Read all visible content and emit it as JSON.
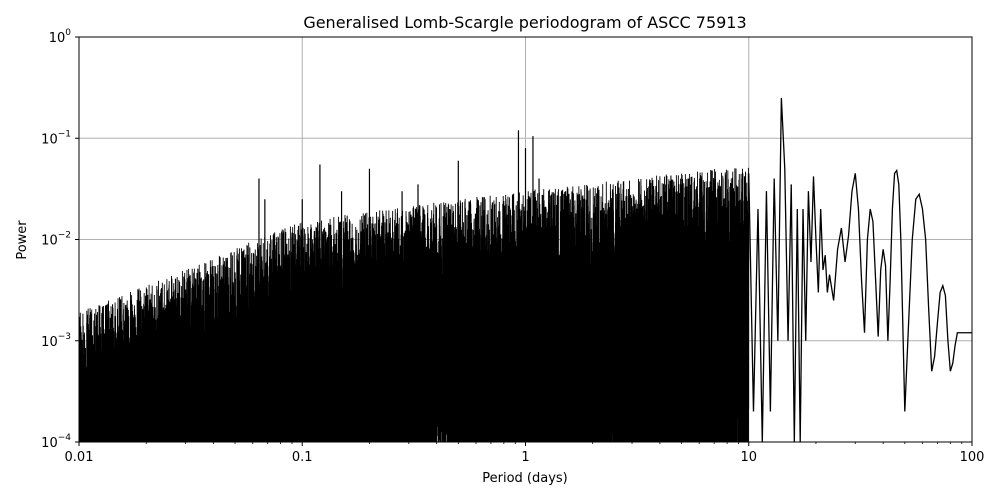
{
  "chart_data": {
    "type": "line",
    "title": "Generalised Lomb-Scargle periodogram of ASCC 75913",
    "xlabel": "Period (days)",
    "ylabel": "Power",
    "xscale": "log",
    "yscale": "log",
    "xlim": [
      0.01,
      100
    ],
    "ylim": [
      0.0001,
      1
    ],
    "grid": true,
    "line_color": "#000000",
    "x_ticks": [
      {
        "value": 0.01,
        "label": "0.01"
      },
      {
        "value": 0.1,
        "label": "0.1"
      },
      {
        "value": 1,
        "label": "1"
      },
      {
        "value": 10,
        "label": "10"
      },
      {
        "value": 100,
        "label": "100"
      }
    ],
    "y_ticks": [
      {
        "value": 0.0001,
        "base": "10",
        "exp": "−4"
      },
      {
        "value": 0.001,
        "base": "10",
        "exp": "−3"
      },
      {
        "value": 0.01,
        "base": "10",
        "exp": "−2"
      },
      {
        "value": 0.1,
        "base": "10",
        "exp": "−1"
      },
      {
        "value": 1,
        "base": "10",
        "exp": "0"
      }
    ],
    "series": [
      {
        "x": [
          10.0,
          10.5,
          11.0,
          11.5,
          12.0,
          12.5,
          13.0,
          13.5,
          14.0,
          14.5,
          15.0,
          15.5,
          16.0,
          16.5,
          17.0,
          17.5,
          18.0,
          18.5,
          19.0,
          19.5,
          20.0,
          20.5,
          21.0,
          21.5,
          22.0,
          22.5,
          23.0,
          24.0,
          25.0,
          26.0,
          27.0,
          28.0,
          29.0,
          30.0,
          31.0,
          32.0,
          33.0,
          34.0,
          35.0,
          36.0,
          37.0,
          38.0,
          39.0,
          40.0,
          41.0,
          42.0,
          43.0,
          44.0,
          45.0,
          46.0,
          47.0,
          48.0,
          50.0,
          52.0,
          54.0,
          56.0,
          58.0,
          60.0,
          62.0,
          64.0,
          66.0,
          68.0,
          70.0,
          72.0,
          74.0,
          76.0,
          78.0,
          80.0,
          82.0,
          84.0,
          86.0,
          88.0,
          90.0,
          92.0,
          94.0,
          96.0,
          98.0,
          100.0
        ],
        "y": [
          0.045,
          0.0002,
          0.02,
          0.0001,
          0.03,
          0.0002,
          0.04,
          0.001,
          0.25,
          0.05,
          0.001,
          0.035,
          0.0001,
          0.02,
          0.0001,
          0.02,
          0.001,
          0.03,
          0.006,
          0.042,
          0.01,
          0.003,
          0.02,
          0.005,
          0.007,
          0.003,
          0.0045,
          0.0025,
          0.008,
          0.013,
          0.006,
          0.011,
          0.03,
          0.045,
          0.02,
          0.004,
          0.0012,
          0.01,
          0.02,
          0.015,
          0.004,
          0.0011,
          0.005,
          0.008,
          0.0055,
          0.001,
          0.004,
          0.02,
          0.045,
          0.048,
          0.035,
          0.01,
          0.0002,
          0.0015,
          0.01,
          0.025,
          0.028,
          0.02,
          0.01,
          0.002,
          0.0005,
          0.0007,
          0.0015,
          0.003,
          0.0035,
          0.0028,
          0.001,
          0.0005,
          0.0006,
          0.0009,
          0.0012,
          0.0012,
          0.0012,
          0.0012,
          0.0012,
          0.0012,
          0.0012,
          0.0012
        ]
      }
    ],
    "peaks": [
      {
        "x": 0.064,
        "y": 0.04
      },
      {
        "x": 0.068,
        "y": 0.025
      },
      {
        "x": 0.1,
        "y": 0.025
      },
      {
        "x": 0.12,
        "y": 0.055
      },
      {
        "x": 0.15,
        "y": 0.03
      },
      {
        "x": 0.2,
        "y": 0.05
      },
      {
        "x": 0.28,
        "y": 0.03
      },
      {
        "x": 0.33,
        "y": 0.035
      },
      {
        "x": 0.5,
        "y": 0.06
      },
      {
        "x": 0.93,
        "y": 0.12
      },
      {
        "x": 1.0,
        "y": 0.08
      },
      {
        "x": 1.08,
        "y": 0.105
      },
      {
        "x": 1.15,
        "y": 0.04
      }
    ]
  }
}
